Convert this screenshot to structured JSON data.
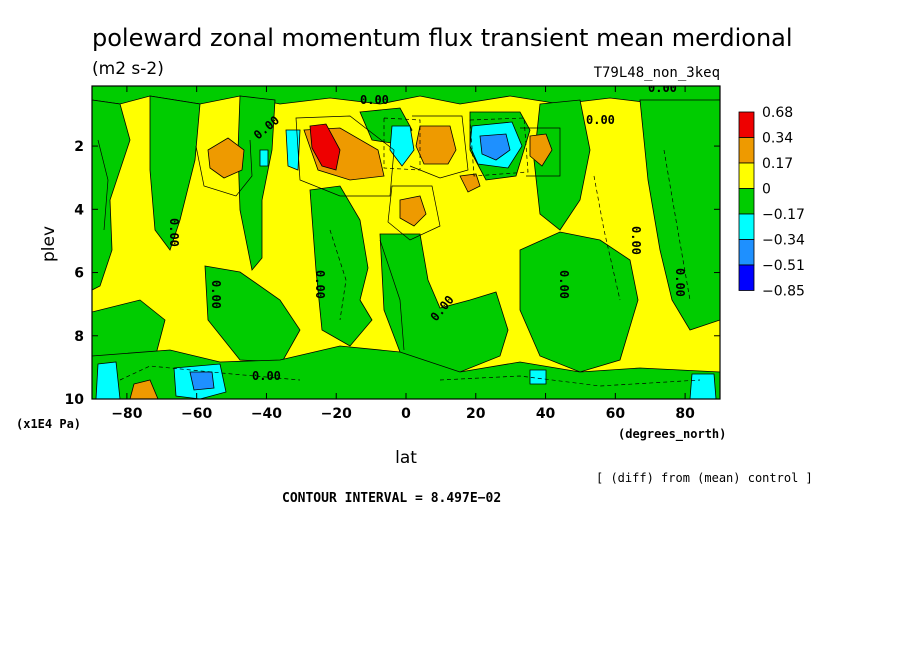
{
  "chart_data": {
    "type": "heatmap",
    "title": "poleward zonal momentum flux transient mean merdional",
    "units": "(m2 s-2)",
    "run_label": "T79L48_non_3keq",
    "xlabel": "lat",
    "x_units": "(degrees_north)",
    "ylabel": "plev",
    "y_units": "(x1E4 Pa)",
    "xlim": [
      -90,
      90
    ],
    "ylim": [
      0.1,
      10
    ],
    "y_inverted": true,
    "x_ticks": [
      -80,
      -60,
      -40,
      -20,
      0,
      20,
      40,
      60,
      80
    ],
    "x_tick_labels": [
      "−80",
      "−60",
      "−40",
      "−20",
      "0",
      "20",
      "40",
      "60",
      "80"
    ],
    "y_ticks": [
      2,
      4,
      6,
      8,
      10
    ],
    "y_tick_labels": [
      "2",
      "4",
      "6",
      "8",
      "10"
    ],
    "contour_interval": "CONTOUR INTERVAL = 8.497E−02",
    "diff_note": "[ (diff) from (mean) control ]",
    "legend": {
      "placement": "right",
      "levels": [
        "0.68",
        "0.34",
        "0.17",
        "0",
        "−0.17",
        "−0.34",
        "−0.51",
        "−0.85"
      ],
      "colors": [
        "#ee0000",
        "#ee9a00",
        "#ffff00",
        "#00cc00",
        "#00ffff",
        "#1e90ff",
        "#0000ff"
      ]
    },
    "contour_labels": [
      "0.00",
      "0.00",
      "0.00",
      "0.00",
      "0.00",
      "0.00",
      "0.00",
      "0.00",
      "0.00",
      "0.00",
      "0.00",
      "0.00"
    ],
    "background_color": "#ffff00",
    "features": [
      {
        "lat": -88,
        "plev": 3.0,
        "value": -0.1
      },
      {
        "lat": -75,
        "plev": 9.2,
        "value": -0.2
      },
      {
        "lat": -75,
        "plev": 9.8,
        "value": 0.4
      },
      {
        "lat": -72,
        "plev": 4.5,
        "value": -0.1
      },
      {
        "lat": -57,
        "plev": 9.4,
        "value": -0.4
      },
      {
        "lat": -55,
        "plev": 2.2,
        "value": 0.3
      },
      {
        "lat": -52,
        "plev": 6.5,
        "value": -0.1
      },
      {
        "lat": -46,
        "plev": 2.6,
        "value": -0.1
      },
      {
        "lat": -40,
        "plev": 2.3,
        "value": -0.2
      },
      {
        "lat": -38,
        "plev": 9.0,
        "value": -0.1
      },
      {
        "lat": -33,
        "plev": 2.5,
        "value": -0.1
      },
      {
        "lat": -24,
        "plev": 1.9,
        "value": 0.8
      },
      {
        "lat": -20,
        "plev": 2.2,
        "value": 0.3
      },
      {
        "lat": -18,
        "plev": 6.0,
        "value": -0.1
      },
      {
        "lat": -12,
        "plev": 3.6,
        "value": -0.1
      },
      {
        "lat": -10,
        "plev": 8.5,
        "value": -0.1
      },
      {
        "lat": -1,
        "plev": 1.8,
        "value": -0.3
      },
      {
        "lat": 2,
        "plev": 4.0,
        "value": 0.3
      },
      {
        "lat": 8,
        "plev": 1.9,
        "value": 0.3
      },
      {
        "lat": 10,
        "plev": 8.0,
        "value": -0.1
      },
      {
        "lat": 19,
        "plev": 3.0,
        "value": 0.2
      },
      {
        "lat": 24,
        "plev": 2.0,
        "value": -0.6
      },
      {
        "lat": 33,
        "plev": 6.5,
        "value": -0.1
      },
      {
        "lat": 38,
        "plev": 2.3,
        "value": 0.2
      },
      {
        "lat": 40,
        "plev": 9.4,
        "value": -0.3
      },
      {
        "lat": 55,
        "plev": 9.4,
        "value": -0.2
      },
      {
        "lat": 70,
        "plev": 3.5,
        "value": -0.1
      },
      {
        "lat": 85,
        "plev": 9.5,
        "value": -0.3
      }
    ]
  }
}
